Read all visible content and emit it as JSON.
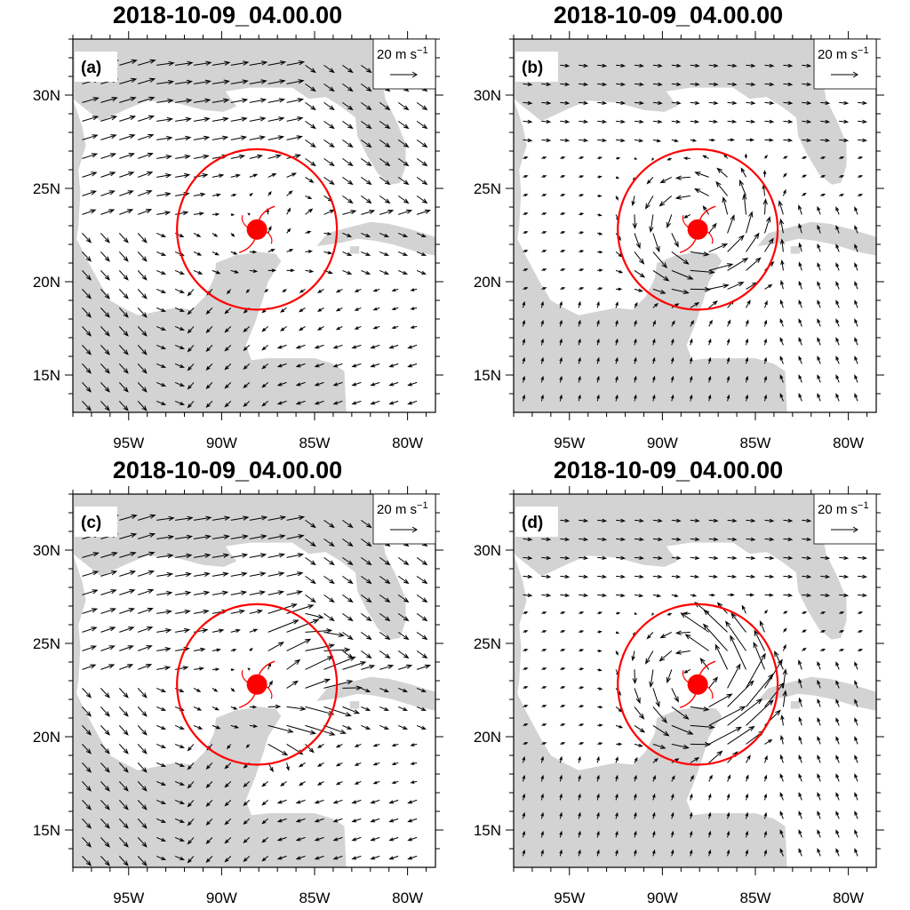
{
  "panels": [
    {
      "id": "a",
      "title": "2018-10-09_04.00.00",
      "label": "(a)",
      "pattern": "a"
    },
    {
      "id": "b",
      "title": "2018-10-09_04.00.00",
      "label": "(b)",
      "pattern": "b"
    },
    {
      "id": "c",
      "title": "2018-10-09_04.00.00",
      "label": "(c)",
      "pattern": "c"
    },
    {
      "id": "d",
      "title": "2018-10-09_04.00.00",
      "label": "(d)",
      "pattern": "d"
    }
  ],
  "map": {
    "lon_range": [
      -98,
      -78.5
    ],
    "lat_range": [
      13,
      33
    ],
    "x_ticks": [
      "95W",
      "90W",
      "85W",
      "80W"
    ],
    "y_ticks": [
      "30N",
      "25N",
      "20N",
      "15N"
    ],
    "land_color": "#d3d3d3",
    "ocean_color": "#ffffff"
  },
  "reference_vector": {
    "magnitude_label": "20 m s",
    "unit_exponent": "−1"
  },
  "storm": {
    "center_lon": -88.1,
    "center_lat": 22.8,
    "circle_radius_deg": 4.3,
    "color": "#ff0000",
    "symbol": "hurricane-icon"
  }
}
